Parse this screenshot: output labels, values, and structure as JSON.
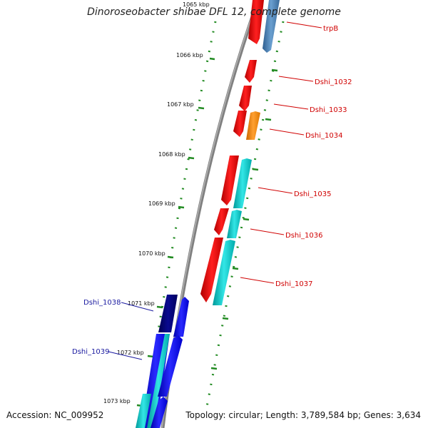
{
  "title": "Dinoroseobacter shibae DFL 12, complete genome",
  "accession": "Accession: NC_009952",
  "topology": "Topology: circular; Length: 3,789,584 bp; Genes: 3,634",
  "kbp_ticks": [
    "1065 kbp",
    "1066 kbp",
    "1067 kbp",
    "1068 kbp",
    "1069 kbp",
    "1070 kbp",
    "1071 kbp",
    "1072 kbp",
    "1073 kbp"
  ],
  "gene_labels": {
    "trpB": "trpB",
    "dshi_1032": "Dshi_1032",
    "dshi_1033": "Dshi_1033",
    "dshi_1034": "Dshi_1034",
    "dshi_1035": "Dshi_1035",
    "dshi_1036": "Dshi_1036",
    "dshi_1037": "Dshi_1037",
    "dshi_1038": "Dshi_1038",
    "dshi_1039": "Dshi_1039"
  },
  "colors": {
    "forward_gene": "#ff0000",
    "reverse_gene_cyan": "#00cccc",
    "reverse_gene_orange": "#ff8800",
    "reverse_gene_steelblue": "#4682b4",
    "blue_gene": "#0000ff",
    "navy_gene": "#000080",
    "backbone": "#808080",
    "tick_dots": "#228b22",
    "label_red": "#d00000",
    "label_blue": "#1a1aa0"
  }
}
